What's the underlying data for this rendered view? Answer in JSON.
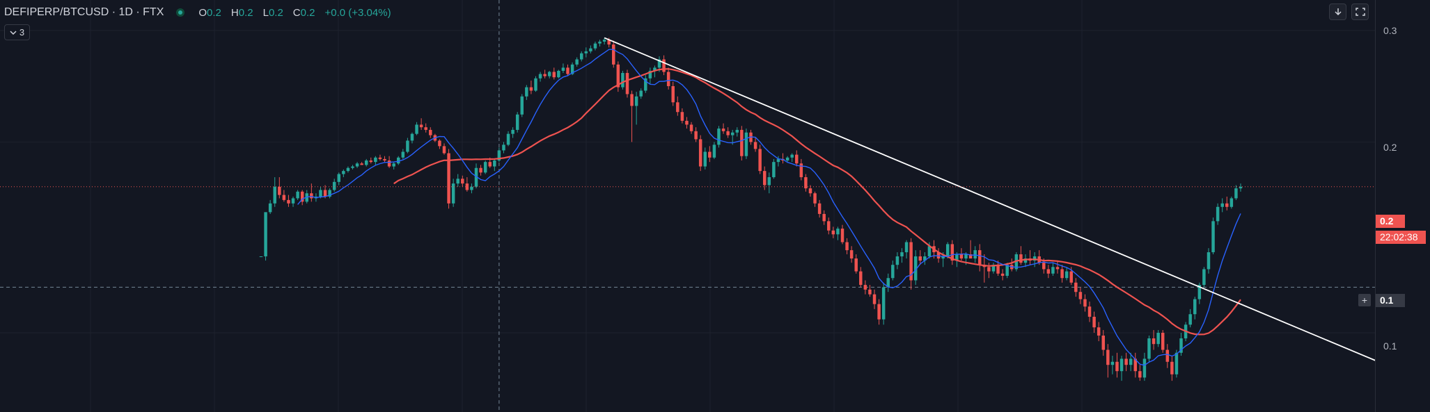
{
  "header": {
    "symbol": "DEFIPERP/BTCUSD",
    "interval": "1D",
    "exchange": "FTX",
    "ohlc": {
      "o_label": "O",
      "o": "0.2",
      "h_label": "H",
      "h": "0.2",
      "l_label": "L",
      "l": "0.2",
      "c_label": "C",
      "c": "0.2",
      "change": "+0.0 (+3.04%)"
    },
    "indicator_count": "3"
  },
  "toolbar": {
    "download_icon": "arrow-down-icon",
    "fullscreen_icon": "fullscreen-icon"
  },
  "price_scale": {
    "ticks": [
      "0.3",
      "0.2",
      "0.1"
    ],
    "last_price": "0.2",
    "countdown": "22:02:38",
    "crosshair_price": "0.1"
  },
  "colors": {
    "background": "#131722",
    "up": "#26a69a",
    "down": "#ef5350",
    "ma_fast": "#2962ff",
    "ma_slow": "#ef5350",
    "trendline": "#ffffff"
  },
  "chart_data": {
    "type": "candlestick",
    "scale": "log",
    "ylim": [
      0.075,
      0.335
    ],
    "ticks": [
      0.1,
      0.2,
      0.3
    ],
    "last_price": 0.17,
    "crosshair_price": 0.118,
    "candles": [
      [
        0.132,
        0.132,
        0.132,
        0.132
      ],
      [
        0.132,
        0.155,
        0.13,
        0.155
      ],
      [
        0.155,
        0.162,
        0.154,
        0.16
      ],
      [
        0.16,
        0.176,
        0.158,
        0.17
      ],
      [
        0.17,
        0.176,
        0.163,
        0.165
      ],
      [
        0.165,
        0.168,
        0.161,
        0.162
      ],
      [
        0.162,
        0.165,
        0.158,
        0.16
      ],
      [
        0.16,
        0.164,
        0.158,
        0.163
      ],
      [
        0.163,
        0.168,
        0.162,
        0.167
      ],
      [
        0.167,
        0.168,
        0.159,
        0.161
      ],
      [
        0.161,
        0.168,
        0.16,
        0.166
      ],
      [
        0.166,
        0.172,
        0.161,
        0.163
      ],
      [
        0.163,
        0.166,
        0.161,
        0.164
      ],
      [
        0.164,
        0.17,
        0.163,
        0.168
      ],
      [
        0.168,
        0.171,
        0.163,
        0.164
      ],
      [
        0.164,
        0.169,
        0.163,
        0.168
      ],
      [
        0.168,
        0.175,
        0.167,
        0.173
      ],
      [
        0.173,
        0.179,
        0.171,
        0.178
      ],
      [
        0.178,
        0.181,
        0.176,
        0.18
      ],
      [
        0.18,
        0.183,
        0.179,
        0.182
      ],
      [
        0.182,
        0.184,
        0.181,
        0.183
      ],
      [
        0.183,
        0.186,
        0.182,
        0.185
      ],
      [
        0.185,
        0.186,
        0.184,
        0.184
      ],
      [
        0.184,
        0.188,
        0.183,
        0.187
      ],
      [
        0.187,
        0.189,
        0.185,
        0.186
      ],
      [
        0.186,
        0.19,
        0.184,
        0.189
      ],
      [
        0.189,
        0.191,
        0.187,
        0.188
      ],
      [
        0.188,
        0.19,
        0.186,
        0.187
      ],
      [
        0.187,
        0.19,
        0.182,
        0.183
      ],
      [
        0.183,
        0.186,
        0.181,
        0.185
      ],
      [
        0.185,
        0.19,
        0.184,
        0.189
      ],
      [
        0.189,
        0.195,
        0.188,
        0.193
      ],
      [
        0.193,
        0.203,
        0.192,
        0.201
      ],
      [
        0.201,
        0.207,
        0.199,
        0.206
      ],
      [
        0.206,
        0.215,
        0.205,
        0.213
      ],
      [
        0.213,
        0.218,
        0.209,
        0.211
      ],
      [
        0.211,
        0.214,
        0.207,
        0.209
      ],
      [
        0.209,
        0.211,
        0.203,
        0.205
      ],
      [
        0.205,
        0.206,
        0.2,
        0.201
      ],
      [
        0.201,
        0.202,
        0.195,
        0.197
      ],
      [
        0.197,
        0.199,
        0.191,
        0.192
      ],
      [
        0.192,
        0.195,
        0.157,
        0.16
      ],
      [
        0.16,
        0.175,
        0.158,
        0.172
      ],
      [
        0.172,
        0.178,
        0.17,
        0.175
      ],
      [
        0.175,
        0.177,
        0.17,
        0.172
      ],
      [
        0.172,
        0.176,
        0.167,
        0.168
      ],
      [
        0.168,
        0.172,
        0.166,
        0.17
      ],
      [
        0.17,
        0.185,
        0.169,
        0.182
      ],
      [
        0.182,
        0.184,
        0.177,
        0.179
      ],
      [
        0.179,
        0.187,
        0.178,
        0.186
      ],
      [
        0.186,
        0.189,
        0.182,
        0.183
      ],
      [
        0.183,
        0.188,
        0.18,
        0.187
      ],
      [
        0.187,
        0.196,
        0.186,
        0.194
      ],
      [
        0.194,
        0.2,
        0.192,
        0.198
      ],
      [
        0.198,
        0.208,
        0.197,
        0.206
      ],
      [
        0.206,
        0.211,
        0.203,
        0.209
      ],
      [
        0.209,
        0.223,
        0.207,
        0.221
      ],
      [
        0.221,
        0.238,
        0.219,
        0.236
      ],
      [
        0.236,
        0.246,
        0.233,
        0.244
      ],
      [
        0.244,
        0.25,
        0.238,
        0.241
      ],
      [
        0.241,
        0.254,
        0.24,
        0.252
      ],
      [
        0.252,
        0.258,
        0.249,
        0.256
      ],
      [
        0.256,
        0.26,
        0.252,
        0.254
      ],
      [
        0.254,
        0.259,
        0.252,
        0.258
      ],
      [
        0.258,
        0.262,
        0.251,
        0.253
      ],
      [
        0.253,
        0.26,
        0.252,
        0.259
      ],
      [
        0.259,
        0.266,
        0.257,
        0.262
      ],
      [
        0.262,
        0.265,
        0.254,
        0.256
      ],
      [
        0.256,
        0.267,
        0.255,
        0.265
      ],
      [
        0.265,
        0.272,
        0.263,
        0.27
      ],
      [
        0.27,
        0.278,
        0.268,
        0.276
      ],
      [
        0.276,
        0.282,
        0.272,
        0.278
      ],
      [
        0.278,
        0.284,
        0.276,
        0.281
      ],
      [
        0.281,
        0.288,
        0.279,
        0.286
      ],
      [
        0.286,
        0.29,
        0.283,
        0.288
      ],
      [
        0.288,
        0.292,
        0.285,
        0.29
      ],
      [
        0.29,
        0.292,
        0.282,
        0.285
      ],
      [
        0.285,
        0.289,
        0.262,
        0.265
      ],
      [
        0.265,
        0.268,
        0.24,
        0.244
      ],
      [
        0.244,
        0.259,
        0.242,
        0.257
      ],
      [
        0.257,
        0.26,
        0.235,
        0.238
      ],
      [
        0.238,
        0.241,
        0.2,
        0.228
      ],
      [
        0.228,
        0.24,
        0.213,
        0.236
      ],
      [
        0.236,
        0.243,
        0.234,
        0.241
      ],
      [
        0.241,
        0.255,
        0.239,
        0.252
      ],
      [
        0.252,
        0.262,
        0.247,
        0.259
      ],
      [
        0.259,
        0.264,
        0.253,
        0.262
      ],
      [
        0.262,
        0.273,
        0.258,
        0.27
      ],
      [
        0.27,
        0.274,
        0.255,
        0.258
      ],
      [
        0.258,
        0.262,
        0.242,
        0.245
      ],
      [
        0.245,
        0.249,
        0.228,
        0.231
      ],
      [
        0.231,
        0.236,
        0.22,
        0.223
      ],
      [
        0.223,
        0.226,
        0.214,
        0.216
      ],
      [
        0.216,
        0.219,
        0.21,
        0.213
      ],
      [
        0.213,
        0.215,
        0.206,
        0.208
      ],
      [
        0.208,
        0.211,
        0.2,
        0.202
      ],
      [
        0.202,
        0.205,
        0.18,
        0.183
      ],
      [
        0.183,
        0.196,
        0.181,
        0.193
      ],
      [
        0.193,
        0.197,
        0.186,
        0.189
      ],
      [
        0.189,
        0.2,
        0.188,
        0.198
      ],
      [
        0.198,
        0.212,
        0.196,
        0.21
      ],
      [
        0.21,
        0.214,
        0.206,
        0.208
      ],
      [
        0.208,
        0.211,
        0.203,
        0.205
      ],
      [
        0.205,
        0.209,
        0.198,
        0.207
      ],
      [
        0.207,
        0.211,
        0.204,
        0.209
      ],
      [
        0.209,
        0.212,
        0.187,
        0.19
      ],
      [
        0.19,
        0.21,
        0.188,
        0.207
      ],
      [
        0.207,
        0.209,
        0.198,
        0.2
      ],
      [
        0.2,
        0.203,
        0.193,
        0.195
      ],
      [
        0.195,
        0.198,
        0.178,
        0.18
      ],
      [
        0.18,
        0.183,
        0.168,
        0.171
      ],
      [
        0.171,
        0.179,
        0.166,
        0.176
      ],
      [
        0.176,
        0.188,
        0.175,
        0.186
      ],
      [
        0.186,
        0.19,
        0.183,
        0.188
      ],
      [
        0.188,
        0.192,
        0.185,
        0.187
      ],
      [
        0.187,
        0.19,
        0.186,
        0.189
      ],
      [
        0.189,
        0.192,
        0.186,
        0.191
      ],
      [
        0.191,
        0.194,
        0.183,
        0.185
      ],
      [
        0.185,
        0.188,
        0.174,
        0.176
      ],
      [
        0.176,
        0.178,
        0.167,
        0.169
      ],
      [
        0.169,
        0.171,
        0.164,
        0.166
      ],
      [
        0.166,
        0.167,
        0.158,
        0.16
      ],
      [
        0.16,
        0.162,
        0.152,
        0.154
      ],
      [
        0.154,
        0.156,
        0.148,
        0.15
      ],
      [
        0.15,
        0.152,
        0.143,
        0.145
      ],
      [
        0.145,
        0.147,
        0.141,
        0.143
      ],
      [
        0.143,
        0.147,
        0.14,
        0.146
      ],
      [
        0.146,
        0.148,
        0.138,
        0.139
      ],
      [
        0.139,
        0.141,
        0.133,
        0.135
      ],
      [
        0.135,
        0.137,
        0.129,
        0.131
      ],
      [
        0.131,
        0.133,
        0.124,
        0.125
      ],
      [
        0.125,
        0.127,
        0.118,
        0.119
      ],
      [
        0.119,
        0.121,
        0.115,
        0.117
      ],
      [
        0.117,
        0.119,
        0.114,
        0.115
      ],
      [
        0.115,
        0.117,
        0.109,
        0.111
      ],
      [
        0.111,
        0.113,
        0.103,
        0.105
      ],
      [
        0.105,
        0.12,
        0.103,
        0.118
      ],
      [
        0.118,
        0.124,
        0.116,
        0.122
      ],
      [
        0.122,
        0.13,
        0.121,
        0.128
      ],
      [
        0.128,
        0.134,
        0.126,
        0.132
      ],
      [
        0.132,
        0.136,
        0.129,
        0.134
      ],
      [
        0.134,
        0.14,
        0.131,
        0.139
      ],
      [
        0.139,
        0.141,
        0.117,
        0.121
      ],
      [
        0.121,
        0.135,
        0.119,
        0.132
      ],
      [
        0.132,
        0.135,
        0.128,
        0.13
      ],
      [
        0.13,
        0.134,
        0.128,
        0.132
      ],
      [
        0.132,
        0.139,
        0.131,
        0.137
      ],
      [
        0.137,
        0.14,
        0.131,
        0.134
      ],
      [
        0.134,
        0.136,
        0.129,
        0.131
      ],
      [
        0.131,
        0.134,
        0.127,
        0.132
      ],
      [
        0.132,
        0.139,
        0.131,
        0.138
      ],
      [
        0.138,
        0.14,
        0.128,
        0.13
      ],
      [
        0.13,
        0.134,
        0.127,
        0.133
      ],
      [
        0.133,
        0.136,
        0.13,
        0.131
      ],
      [
        0.131,
        0.134,
        0.128,
        0.133
      ],
      [
        0.133,
        0.14,
        0.131,
        0.131
      ],
      [
        0.131,
        0.137,
        0.129,
        0.135
      ],
      [
        0.135,
        0.138,
        0.125,
        0.128
      ],
      [
        0.128,
        0.133,
        0.12,
        0.127
      ],
      [
        0.127,
        0.129,
        0.122,
        0.125
      ],
      [
        0.125,
        0.129,
        0.124,
        0.128
      ],
      [
        0.128,
        0.13,
        0.123,
        0.124
      ],
      [
        0.124,
        0.126,
        0.121,
        0.123
      ],
      [
        0.123,
        0.129,
        0.122,
        0.128
      ],
      [
        0.128,
        0.131,
        0.125,
        0.126
      ],
      [
        0.126,
        0.134,
        0.125,
        0.133
      ],
      [
        0.133,
        0.137,
        0.128,
        0.129
      ],
      [
        0.129,
        0.133,
        0.127,
        0.131
      ],
      [
        0.131,
        0.135,
        0.128,
        0.13
      ],
      [
        0.13,
        0.134,
        0.127,
        0.132
      ],
      [
        0.132,
        0.135,
        0.128,
        0.129
      ],
      [
        0.129,
        0.131,
        0.124,
        0.126
      ],
      [
        0.126,
        0.128,
        0.122,
        0.124
      ],
      [
        0.124,
        0.129,
        0.123,
        0.127
      ],
      [
        0.127,
        0.13,
        0.124,
        0.126
      ],
      [
        0.126,
        0.128,
        0.12,
        0.122
      ],
      [
        0.122,
        0.127,
        0.121,
        0.125
      ],
      [
        0.125,
        0.127,
        0.119,
        0.12
      ],
      [
        0.12,
        0.122,
        0.114,
        0.116
      ],
      [
        0.116,
        0.118,
        0.111,
        0.113
      ],
      [
        0.113,
        0.115,
        0.108,
        0.11
      ],
      [
        0.11,
        0.112,
        0.104,
        0.106
      ],
      [
        0.106,
        0.108,
        0.1,
        0.102
      ],
      [
        0.102,
        0.104,
        0.097,
        0.099
      ],
      [
        0.099,
        0.101,
        0.092,
        0.094
      ],
      [
        0.094,
        0.096,
        0.085,
        0.089
      ],
      [
        0.089,
        0.092,
        0.086,
        0.09
      ],
      [
        0.09,
        0.093,
        0.085,
        0.087
      ],
      [
        0.087,
        0.092,
        0.084,
        0.091
      ],
      [
        0.091,
        0.093,
        0.087,
        0.089
      ],
      [
        0.089,
        0.093,
        0.087,
        0.091
      ],
      [
        0.091,
        0.093,
        0.085,
        0.087
      ],
      [
        0.087,
        0.089,
        0.084,
        0.085
      ],
      [
        0.085,
        0.093,
        0.084,
        0.091
      ],
      [
        0.091,
        0.099,
        0.09,
        0.098
      ],
      [
        0.098,
        0.101,
        0.094,
        0.096
      ],
      [
        0.096,
        0.101,
        0.095,
        0.1
      ],
      [
        0.1,
        0.101,
        0.093,
        0.094
      ],
      [
        0.094,
        0.096,
        0.088,
        0.09
      ],
      [
        0.09,
        0.092,
        0.084,
        0.086
      ],
      [
        0.086,
        0.094,
        0.085,
        0.093
      ],
      [
        0.093,
        0.1,
        0.092,
        0.098
      ],
      [
        0.098,
        0.104,
        0.097,
        0.103
      ],
      [
        0.103,
        0.109,
        0.102,
        0.107
      ],
      [
        0.107,
        0.114,
        0.105,
        0.113
      ],
      [
        0.113,
        0.12,
        0.111,
        0.119
      ],
      [
        0.119,
        0.127,
        0.118,
        0.126
      ],
      [
        0.126,
        0.136,
        0.124,
        0.134
      ],
      [
        0.134,
        0.152,
        0.133,
        0.15
      ],
      [
        0.15,
        0.16,
        0.148,
        0.158
      ],
      [
        0.158,
        0.163,
        0.155,
        0.16
      ],
      [
        0.16,
        0.164,
        0.156,
        0.158
      ],
      [
        0.158,
        0.164,
        0.157,
        0.163
      ],
      [
        0.163,
        0.171,
        0.162,
        0.169
      ],
      [
        0.169,
        0.172,
        0.167,
        0.17
      ]
    ],
    "sma_fast": {
      "period": 9
    },
    "sma_slow": {
      "period": 30
    },
    "trendline": [
      [
        75,
        0.292
      ],
      [
        249,
        0.087
      ]
    ],
    "crosshair_index": 52
  }
}
